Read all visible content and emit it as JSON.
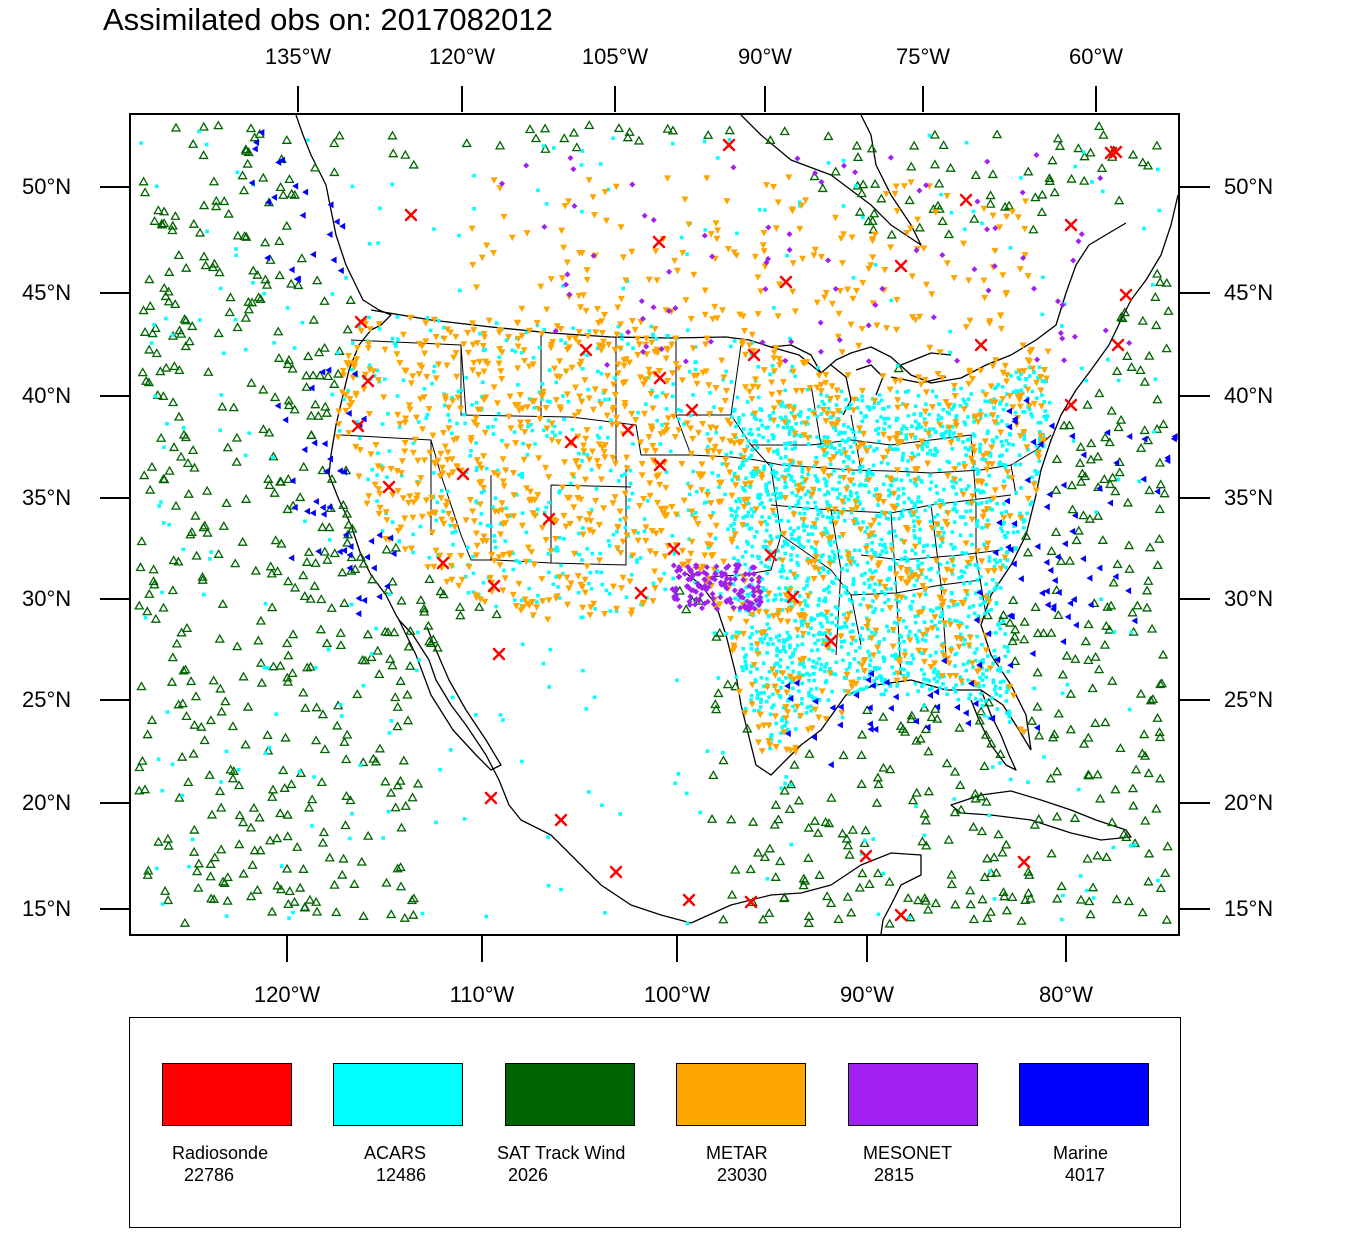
{
  "title": "Assimilated obs on: 2017082012",
  "axes": {
    "top_ticks": [
      "135°W",
      "120°W",
      "105°W",
      "90°W",
      "75°W",
      "60°W"
    ],
    "bottom_ticks": [
      "120°W",
      "110°W",
      "100°W",
      "90°W",
      "80°W"
    ],
    "lat_ticks": [
      "50°N",
      "45°N",
      "40°N",
      "35°N",
      "30°N",
      "25°N",
      "20°N",
      "15°N"
    ]
  },
  "legend": [
    {
      "label": "Radiosonde",
      "count": "22786",
      "color": "#ff0000"
    },
    {
      "label": "ACARS",
      "count": "12486",
      "color": "#00ffff"
    },
    {
      "label": "SAT Track Wind",
      "count": "2026",
      "color": "#006400"
    },
    {
      "label": "METAR",
      "count": "23030",
      "color": "#ffa500"
    },
    {
      "label": "MESONET",
      "count": "2815",
      "color": "#a020f0"
    },
    {
      "label": "Marine",
      "count": "4017",
      "color": "#0000ff"
    }
  ]
}
